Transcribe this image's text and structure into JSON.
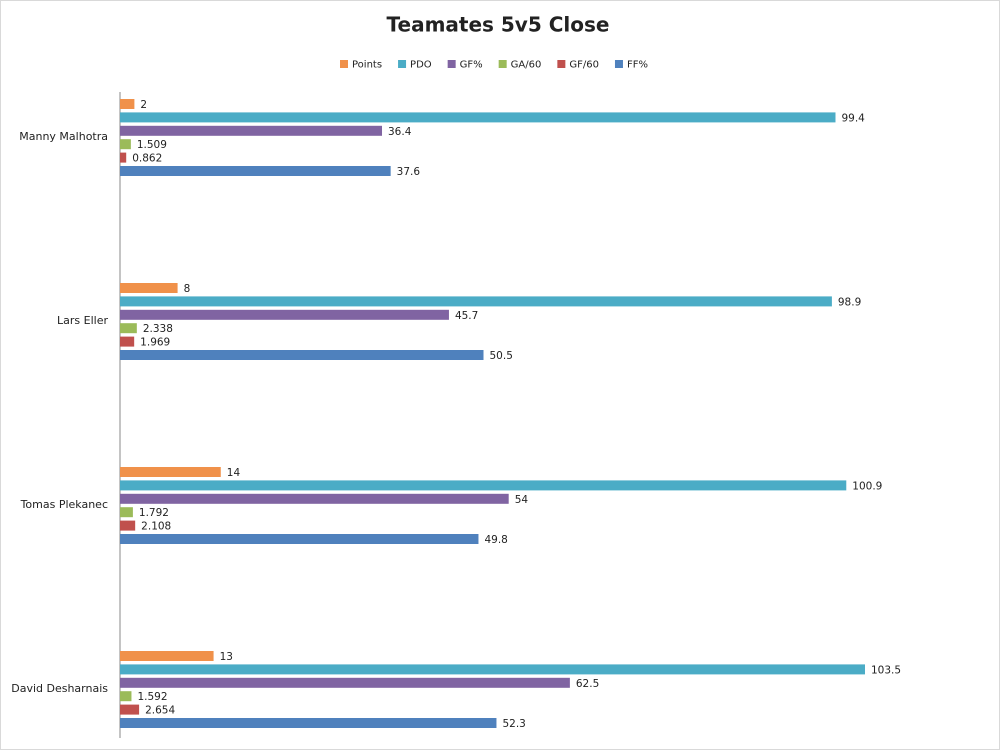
{
  "chart_data": {
    "type": "bar",
    "orientation": "horizontal",
    "title": "Teamates 5v5 Close",
    "categories": [
      "Manny Malhotra",
      "Lars Eller",
      "Tomas Plekanec",
      "David Desharnais"
    ],
    "series": [
      {
        "name": "Points",
        "color": "#f0914a",
        "values": [
          2,
          8,
          14,
          13
        ]
      },
      {
        "name": "PDO",
        "color": "#4bacc6",
        "values": [
          99.4,
          98.9,
          100.9,
          103.5
        ]
      },
      {
        "name": "GF%",
        "color": "#8064a2",
        "values": [
          36.4,
          45.7,
          54,
          62.5
        ]
      },
      {
        "name": "GA/60",
        "color": "#9bbb59",
        "values": [
          1.509,
          2.338,
          1.792,
          1.592
        ]
      },
      {
        "name": "GF/60",
        "color": "#c0504d",
        "values": [
          0.862,
          1.969,
          2.108,
          2.654
        ]
      },
      {
        "name": "FF%",
        "color": "#4f81bd",
        "values": [
          37.6,
          50.5,
          49.8,
          52.3
        ]
      }
    ],
    "legend": "top"
  }
}
